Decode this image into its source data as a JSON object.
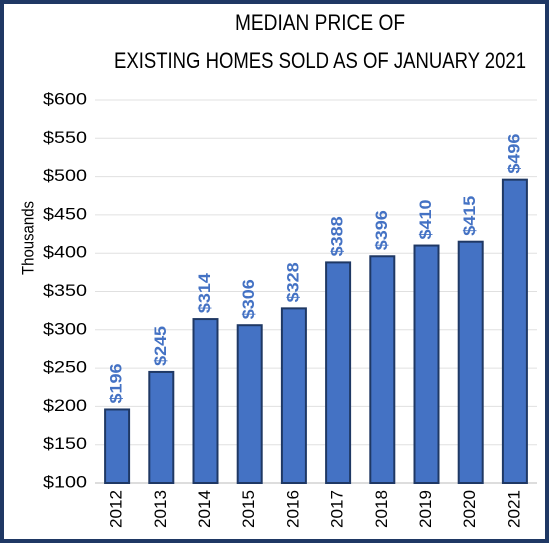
{
  "chart_data": {
    "type": "bar",
    "title": [
      "MEDIAN PRICE OF",
      "EXISTING HOMES SOLD AS OF JANUARY 2021"
    ],
    "y_label": "Thousands",
    "categories": [
      "2012",
      "2013",
      "2014",
      "2015",
      "2016",
      "2017",
      "2018",
      "2019",
      "2020",
      "2021"
    ],
    "values": [
      196,
      245,
      314,
      306,
      328,
      388,
      396,
      410,
      415,
      496
    ],
    "value_labels": [
      "$196",
      "$245",
      "$314",
      "$306",
      "$328",
      "$388",
      "$396",
      "$410",
      "$415",
      "$496"
    ],
    "color": "#4472c4",
    "ylim": [
      100,
      600
    ],
    "yticks": [
      {
        "value": 100,
        "label": "$100"
      },
      {
        "value": 150,
        "label": "$150"
      },
      {
        "value": 200,
        "label": "$200"
      },
      {
        "value": 250,
        "label": "$250"
      },
      {
        "value": 300,
        "label": "$300"
      },
      {
        "value": 350,
        "label": "$350"
      },
      {
        "value": 400,
        "label": "$400"
      },
      {
        "value": 450,
        "label": "$450"
      },
      {
        "value": 500,
        "label": "$500"
      },
      {
        "value": 550,
        "label": "$550"
      },
      {
        "value": 600,
        "label": "$600"
      }
    ],
    "grid": true
  }
}
